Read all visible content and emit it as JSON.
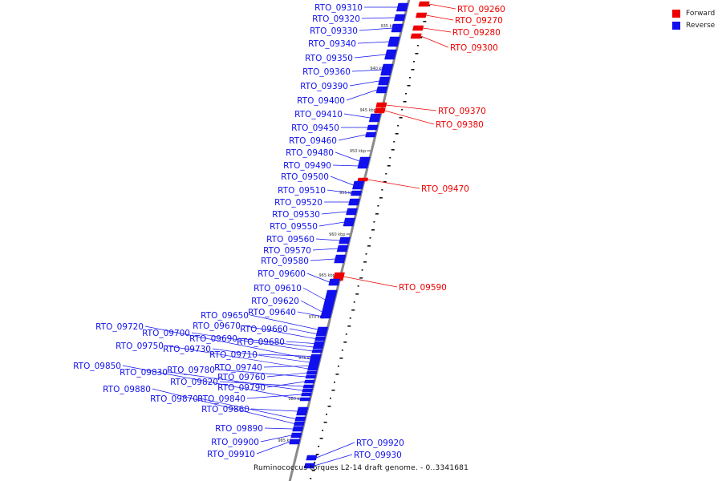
{
  "colors": {
    "forward": "#ee0000",
    "reverse": "#1111ee",
    "backbone": "#8a8a8a"
  },
  "legend": {
    "forward_label": "Forward",
    "reverse_label": "Reverse"
  },
  "caption": "Ruminococcus torques L2-14 draft genome. - 0..3341681",
  "ticks": [
    "935 kbp",
    "940 kbp",
    "945 kbp",
    "950 kbp",
    "955 kbp",
    "960 kbp",
    "965 kbp",
    "970 kbp",
    "975 kbp",
    "980 kbp",
    "985 kbp"
  ],
  "genes": [
    {
      "id": "RTO_09260",
      "strand": "forward"
    },
    {
      "id": "RTO_09270",
      "strand": "forward"
    },
    {
      "id": "RTO_09280",
      "strand": "forward"
    },
    {
      "id": "RTO_09300",
      "strand": "forward"
    },
    {
      "id": "RTO_09310",
      "strand": "reverse"
    },
    {
      "id": "RTO_09320",
      "strand": "reverse"
    },
    {
      "id": "RTO_09330",
      "strand": "reverse"
    },
    {
      "id": "RTO_09340",
      "strand": "reverse"
    },
    {
      "id": "RTO_09350",
      "strand": "reverse"
    },
    {
      "id": "RTO_09360",
      "strand": "reverse"
    },
    {
      "id": "RTO_09370",
      "strand": "forward"
    },
    {
      "id": "RTO_09380",
      "strand": "forward"
    },
    {
      "id": "RTO_09390",
      "strand": "reverse"
    },
    {
      "id": "RTO_09400",
      "strand": "reverse"
    },
    {
      "id": "RTO_09410",
      "strand": "reverse"
    },
    {
      "id": "RTO_09450",
      "strand": "reverse"
    },
    {
      "id": "RTO_09460",
      "strand": "reverse"
    },
    {
      "id": "RTO_09470",
      "strand": "forward"
    },
    {
      "id": "RTO_09480",
      "strand": "reverse"
    },
    {
      "id": "RTO_09490",
      "strand": "reverse"
    },
    {
      "id": "RTO_09500",
      "strand": "reverse"
    },
    {
      "id": "RTO_09510",
      "strand": "reverse"
    },
    {
      "id": "RTO_09520",
      "strand": "reverse"
    },
    {
      "id": "RTO_09530",
      "strand": "reverse"
    },
    {
      "id": "RTO_09550",
      "strand": "reverse"
    },
    {
      "id": "RTO_09560",
      "strand": "reverse"
    },
    {
      "id": "RTO_09570",
      "strand": "reverse"
    },
    {
      "id": "RTO_09580",
      "strand": "reverse"
    },
    {
      "id": "RTO_09590",
      "strand": "forward"
    },
    {
      "id": "RTO_09600",
      "strand": "reverse"
    },
    {
      "id": "RTO_09610",
      "strand": "reverse"
    },
    {
      "id": "RTO_09620",
      "strand": "reverse"
    },
    {
      "id": "RTO_09640",
      "strand": "reverse"
    },
    {
      "id": "RTO_09650",
      "strand": "reverse"
    },
    {
      "id": "RTO_09660",
      "strand": "reverse"
    },
    {
      "id": "RTO_09670",
      "strand": "reverse"
    },
    {
      "id": "RTO_09680",
      "strand": "reverse"
    },
    {
      "id": "RTO_09690",
      "strand": "reverse"
    },
    {
      "id": "RTO_09700",
      "strand": "reverse"
    },
    {
      "id": "RTO_09710",
      "strand": "reverse"
    },
    {
      "id": "RTO_09720",
      "strand": "reverse"
    },
    {
      "id": "RTO_09730",
      "strand": "reverse"
    },
    {
      "id": "RTO_09740",
      "strand": "reverse"
    },
    {
      "id": "RTO_09750",
      "strand": "reverse"
    },
    {
      "id": "RTO_09760",
      "strand": "reverse"
    },
    {
      "id": "RTO_09780",
      "strand": "reverse"
    },
    {
      "id": "RTO_09790",
      "strand": "reverse"
    },
    {
      "id": "RTO_09820",
      "strand": "reverse"
    },
    {
      "id": "RTO_09830",
      "strand": "reverse"
    },
    {
      "id": "RTO_09840",
      "strand": "reverse"
    },
    {
      "id": "RTO_09850",
      "strand": "reverse"
    },
    {
      "id": "RTO_09860",
      "strand": "reverse"
    },
    {
      "id": "RTO_09870",
      "strand": "reverse"
    },
    {
      "id": "RTO_09880",
      "strand": "reverse"
    },
    {
      "id": "RTO_09890",
      "strand": "reverse"
    },
    {
      "id": "RTO_09900",
      "strand": "reverse"
    },
    {
      "id": "RTO_09910",
      "strand": "reverse"
    },
    {
      "id": "RTO_09920",
      "strand": "reverse"
    },
    {
      "id": "RTO_09930",
      "strand": "reverse"
    }
  ]
}
